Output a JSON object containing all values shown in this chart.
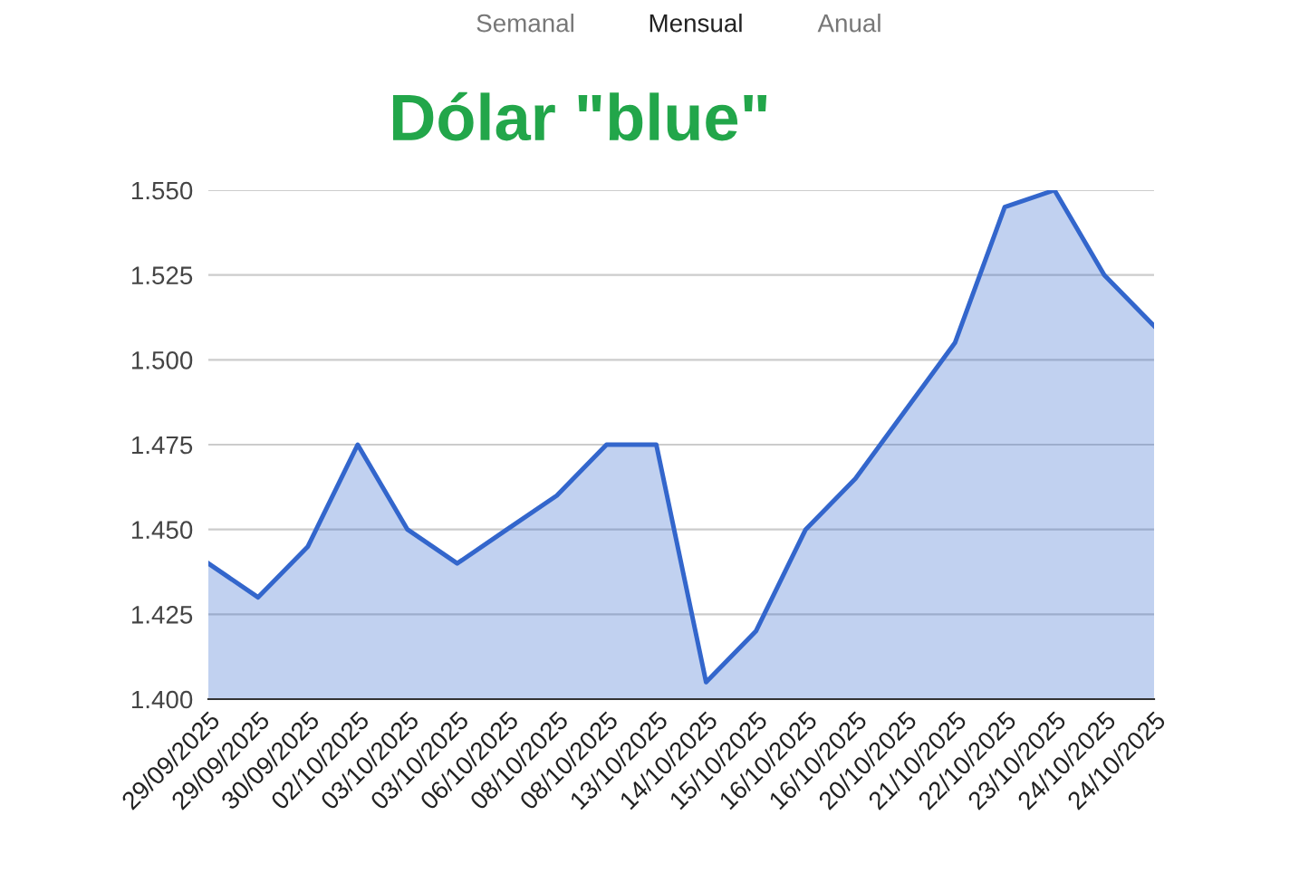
{
  "chart_data": {
    "type": "area",
    "title": "Dólar \"blue\"",
    "annotations": [
      "Semanal",
      "Mensual",
      "Anual"
    ],
    "categories": [
      "29/09/2025",
      "29/09/2025",
      "30/09/2025",
      "02/10/2025",
      "03/10/2025",
      "03/10/2025",
      "06/10/2025",
      "08/10/2025",
      "08/10/2025",
      "13/10/2025",
      "14/10/2025",
      "15/10/2025",
      "16/10/2025",
      "16/10/2025",
      "20/10/2025",
      "21/10/2025",
      "22/10/2025",
      "23/10/2025",
      "24/10/2025",
      "24/10/2025"
    ],
    "series": [
      {
        "color": "#3366cc",
        "values": [
          1440,
          1430,
          1445,
          1475,
          1450,
          1440,
          1450,
          1460,
          1475,
          1475,
          1405,
          1420,
          1450,
          1465,
          1485,
          1505,
          1545,
          1550,
          1525,
          1510
        ]
      }
    ],
    "ylim": [
      1400,
      1550
    ],
    "yticks": [
      {
        "value": 1400,
        "label": "1.400"
      },
      {
        "value": 1425,
        "label": "1.425"
      },
      {
        "value": 1450,
        "label": "1.450"
      },
      {
        "value": 1475,
        "label": "1.475"
      },
      {
        "value": 1500,
        "label": "1.500"
      },
      {
        "value": 1525,
        "label": "1.525"
      },
      {
        "value": 1550,
        "label": "1.550"
      }
    ],
    "grid": "y"
  }
}
